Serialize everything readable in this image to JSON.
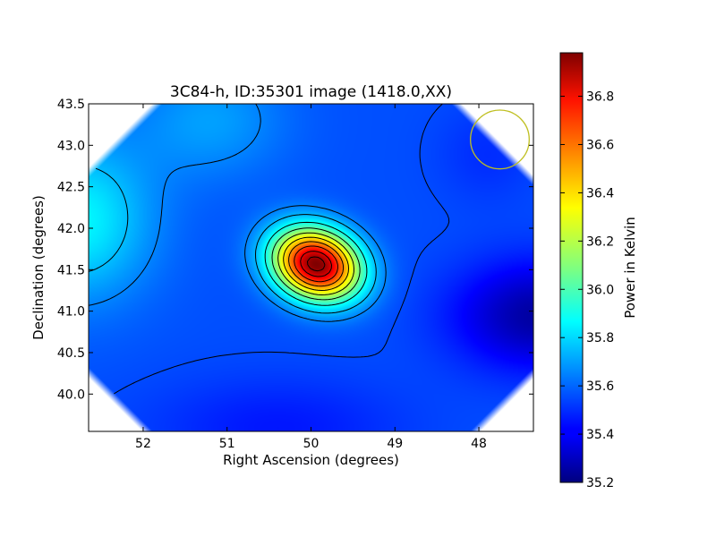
{
  "chart_data": {
    "type": "heatmap",
    "title": "3C84-h, ID:35301 image (1418.0,XX)",
    "xlabel": "Right Ascension (degrees)",
    "ylabel": "Declination (degrees)",
    "xlim": [
      52.65,
      47.35
    ],
    "ylim": [
      39.55,
      43.5
    ],
    "x_ticks": [
      52,
      51,
      50,
      49,
      48
    ],
    "x_tick_labels": [
      "52",
      "51",
      "50",
      "49",
      "48"
    ],
    "y_ticks": [
      40.0,
      40.5,
      41.0,
      41.5,
      42.0,
      42.5,
      43.0,
      43.5
    ],
    "y_tick_labels": [
      "40.0",
      "40.5",
      "41.0",
      "41.5",
      "42.0",
      "42.5",
      "43.0",
      "43.5"
    ],
    "colorbar": {
      "label": "Power in Kelvin",
      "range": [
        35.2,
        36.98
      ],
      "ticks": [
        35.2,
        35.4,
        35.6,
        35.8,
        36.0,
        36.2,
        36.4,
        36.6,
        36.8
      ],
      "tick_labels": [
        "35.2",
        "35.4",
        "35.6",
        "35.8",
        "36.0",
        "36.2",
        "36.4",
        "36.6",
        "36.8"
      ],
      "colormap": "jet"
    },
    "peak": {
      "ra": 49.94,
      "dec": 41.57,
      "value": 36.98
    },
    "contour_levels": [
      35.55,
      35.65,
      35.75,
      35.9,
      36.05,
      36.2,
      36.35,
      36.5,
      36.65,
      36.8,
      36.92
    ],
    "beam_circle": {
      "ra": 47.75,
      "dec": 43.07,
      "radius_deg": 0.35,
      "color": "#bfbf20"
    },
    "grid": false,
    "legend": "none"
  }
}
